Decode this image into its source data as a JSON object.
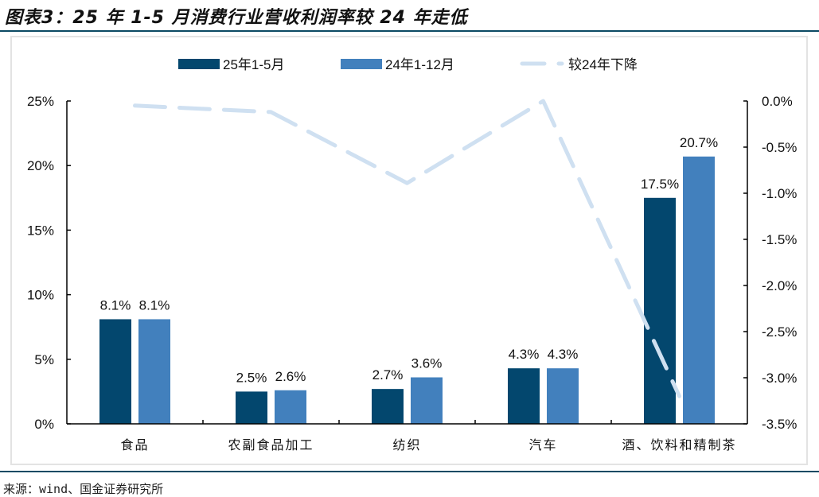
{
  "header": {
    "title": "图表3：25 年 1-5 月消费行业营收利润率较 24 年走低"
  },
  "footer": {
    "source": "来源：wind、国金证券研究所"
  },
  "colors": {
    "series_2025": "#03476e",
    "series_2024": "#4280bd",
    "decline_line": "#cfe0f1",
    "rule": "#0b4a63",
    "frame": "#e3e3e3"
  },
  "legend": {
    "items": [
      {
        "label": "25年1-5月",
        "type": "bar"
      },
      {
        "label": "24年1-12月",
        "type": "bar"
      },
      {
        "label": "较24年下降",
        "type": "dashed-line"
      }
    ]
  },
  "chart_data": {
    "type": "bar",
    "title": "图表3：25 年 1-5 月消费行业营收利润率较 24 年走低",
    "categories": [
      "食品",
      "农副食品加工",
      "纺织",
      "汽车",
      "酒、饮料和精制茶"
    ],
    "series": [
      {
        "name": "25年1-5月",
        "type": "bar",
        "axis": "left",
        "values": [
          8.1,
          2.5,
          2.7,
          4.3,
          17.5
        ],
        "labels": [
          "8.1%",
          "2.5%",
          "2.7%",
          "4.3%",
          "17.5%"
        ]
      },
      {
        "name": "24年1-12月",
        "type": "bar",
        "axis": "left",
        "values": [
          8.1,
          2.6,
          3.6,
          4.3,
          20.7
        ],
        "labels": [
          "8.1%",
          "2.6%",
          "3.6%",
          "4.3%",
          "20.7%"
        ]
      },
      {
        "name": "较24年下降",
        "type": "line",
        "style": "dashed",
        "axis": "right",
        "values": [
          -0.05,
          -0.12,
          -0.89,
          0.0,
          -3.2
        ]
      }
    ],
    "left_axis": {
      "ylim": [
        0,
        25
      ],
      "ticks": [
        "0%",
        "5%",
        "10%",
        "15%",
        "20%",
        "25%"
      ]
    },
    "right_axis": {
      "ylim": [
        -3.5,
        0
      ],
      "ticks": [
        "0.0%",
        "-0.5%",
        "-1.0%",
        "-1.5%",
        "-2.0%",
        "-2.5%",
        "-3.0%",
        "-3.5%"
      ]
    },
    "xlabel": "",
    "ylabel": "",
    "grid": false,
    "legend_position": "top"
  }
}
